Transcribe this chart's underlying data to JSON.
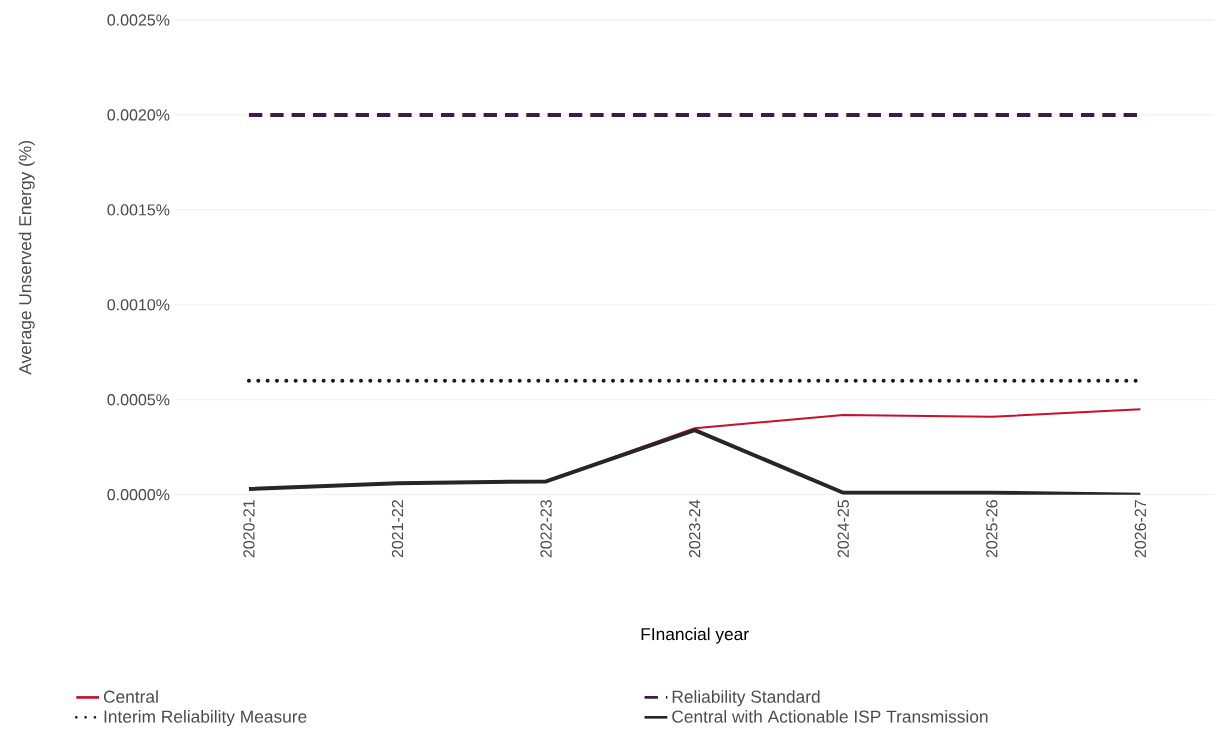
{
  "chart_data": {
    "type": "line",
    "xlabel": "FInancial year",
    "ylabel": "Average Unserved Energy (%)",
    "categories": [
      "2020-21",
      "2021-22",
      "2022-23",
      "2023-24",
      "2024-25",
      "2025-26",
      "2026-27"
    ],
    "series": [
      {
        "name": "Central",
        "color": "#c8102e",
        "line_style": "solid",
        "values": [
          null,
          null,
          7e-05,
          0.00035,
          0.00042,
          0.00041,
          0.00045
        ]
      },
      {
        "name": "Reliability Standard",
        "color": "#3c1a4a",
        "line_style": "dashed",
        "values": [
          0.002,
          0.002,
          0.002,
          0.002,
          0.002,
          0.002,
          0.002
        ]
      },
      {
        "name": "Interim Reliability Measure",
        "color": "#1a1a1a",
        "line_style": "dotted",
        "values": [
          0.0006,
          0.0006,
          0.0006,
          0.0006,
          0.0006,
          0.0006,
          0.0006
        ]
      },
      {
        "name": "Central with Actionable ISP Transmission",
        "color": "#262626",
        "line_style": "solid",
        "values": [
          3e-05,
          6e-05,
          7e-05,
          0.00034,
          1e-05,
          1e-05,
          0
        ]
      }
    ],
    "ylim": [
      0,
      0.0025
    ],
    "yticks": [
      {
        "value": 0,
        "label": "0.0000%"
      },
      {
        "value": 0.0005,
        "label": "0.0005%"
      },
      {
        "value": 0.001,
        "label": "0.0010%"
      },
      {
        "value": 0.0015,
        "label": "0.0015%"
      },
      {
        "value": 0.002,
        "label": "0.0020%"
      },
      {
        "value": 0.0025,
        "label": "0.0025%"
      }
    ],
    "grid": "y",
    "legend": "bottom",
    "marker": "none"
  }
}
